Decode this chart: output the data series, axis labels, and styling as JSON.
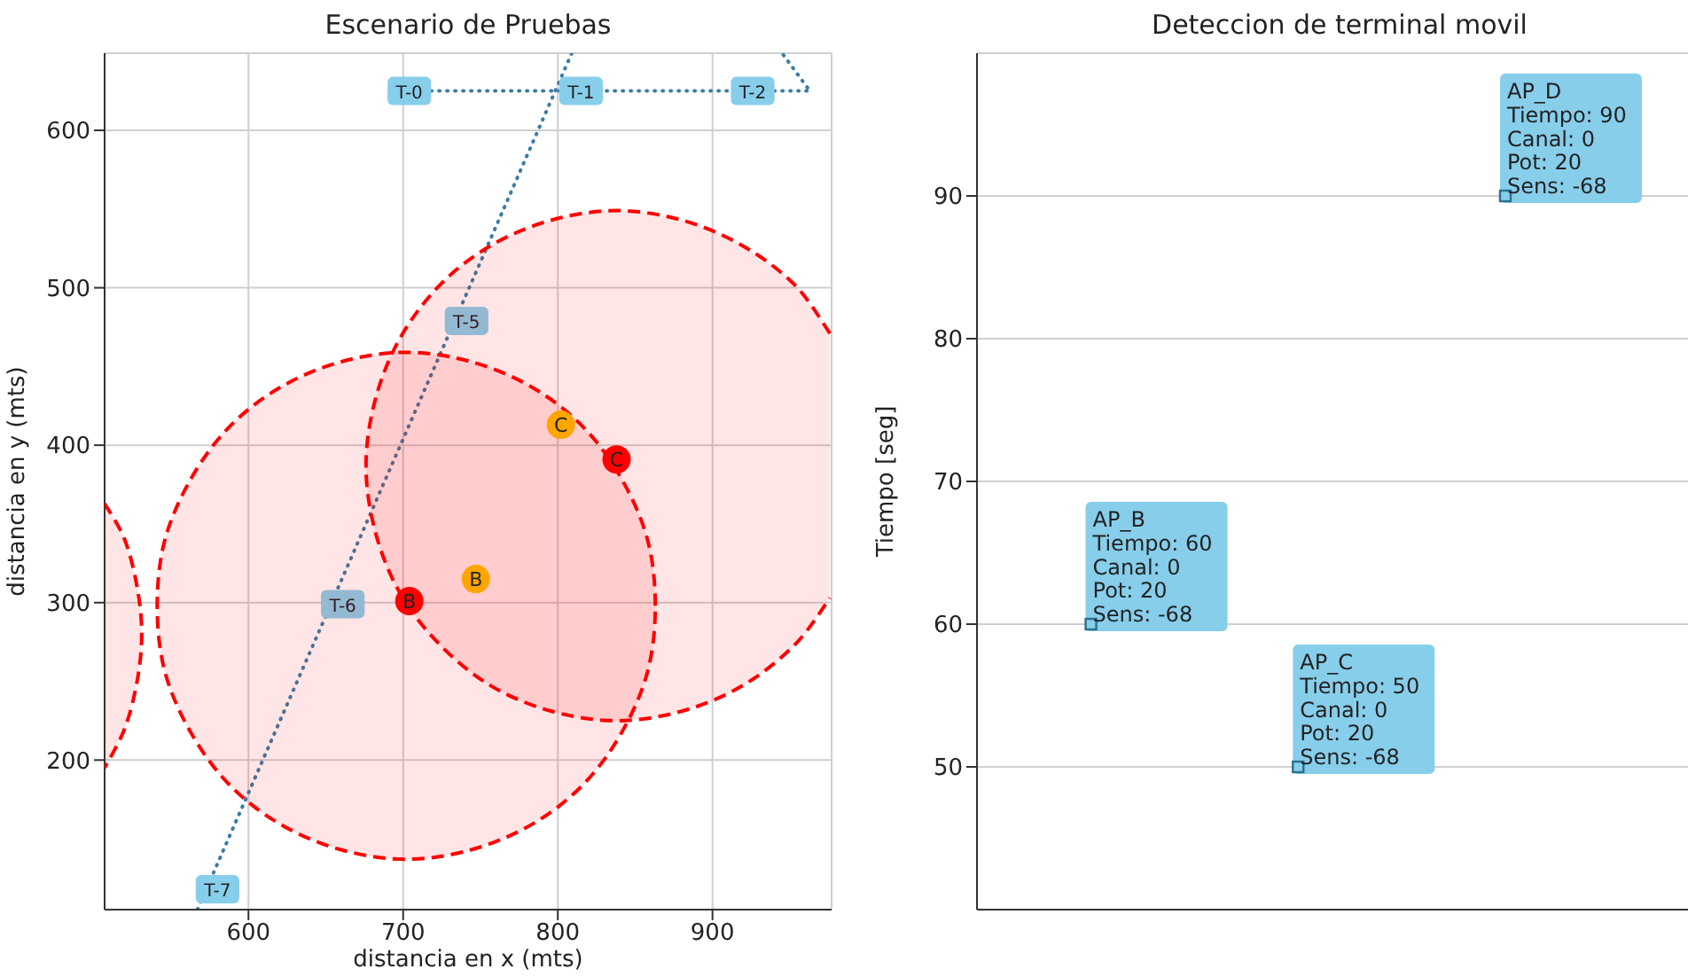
{
  "chart_data": [
    {
      "type": "scatter",
      "title": "Escenario de Pruebas",
      "xlabel": "distancia en x (mts)",
      "ylabel": "distancia en y (mts)",
      "xlim": [
        507,
        977
      ],
      "ylim": [
        105,
        649
      ],
      "xticks": [
        600,
        700,
        800,
        900
      ],
      "yticks": [
        200,
        300,
        400,
        500,
        600
      ],
      "grid": true,
      "series": [
        {
          "type": "area",
          "color": "#ff0000",
          "line_style": "dashed",
          "x": [
            863,
            858,
            841,
            816,
            783,
            744,
            702,
            660,
            621,
            588,
            563,
            546,
            541,
            546,
            563,
            588,
            621,
            660,
            702,
            744,
            783,
            816,
            841,
            858,
            863
          ],
          "values": [
            298,
            340,
            379,
            412,
            437,
            453,
            459,
            453,
            437,
            412,
            379,
            340,
            298,
            256,
            217,
            184,
            159,
            143,
            137,
            143,
            159,
            184,
            217,
            256,
            298
          ]
        },
        {
          "type": "area",
          "color": "#ff0000",
          "line_style": "dashed",
          "x": [
            976,
            953,
            919,
            880,
            838,
            796,
            757,
            724,
            698,
            682,
            676,
            682,
            698,
            724,
            757,
            796,
            838,
            880,
            919,
            953,
            976
          ],
          "values": [
            471,
            502,
            527,
            543,
            549,
            543,
            527,
            502,
            468,
            429,
            387,
            345,
            306,
            273,
            247,
            231,
            225,
            231,
            247,
            273,
            303
          ]
        },
        {
          "type": "area",
          "color": "#ff0000",
          "line_style": "dashed",
          "x": [
            507,
            520,
            528,
            531,
            528,
            520,
            507
          ],
          "values": [
            363,
            340,
            310,
            280,
            250,
            220,
            195
          ]
        },
        {
          "type": "line",
          "color": "#3a7ca5",
          "line_style": "dotted",
          "marker": "none",
          "x": [
            718,
            963,
            945
          ],
          "values": [
            625,
            625,
            649
          ]
        },
        {
          "type": "line",
          "color": "#3a7ca5",
          "line_style": "dotted",
          "marker": "none",
          "x": [
            809,
            567
          ],
          "values": [
            649,
            105
          ]
        },
        {
          "color": "#ff0000",
          "marker": "circle",
          "x": [
            704,
            838
          ],
          "values": [
            301,
            391
          ],
          "value_labels": [
            "B",
            "C"
          ]
        },
        {
          "color": "#ffa500",
          "marker": "circle",
          "x": [
            747,
            802
          ],
          "values": [
            315,
            413
          ],
          "value_labels": [
            "B",
            "C"
          ]
        }
      ],
      "annotations": [
        {
          "text": "T-0",
          "x": 704,
          "y": 625
        },
        {
          "text": "T-1",
          "x": 815,
          "y": 625
        },
        {
          "text": "T-2",
          "x": 926,
          "y": 625
        },
        {
          "text": "T-5",
          "x": 741,
          "y": 479
        },
        {
          "text": "T-6",
          "x": 661,
          "y": 299
        },
        {
          "text": "T-7",
          "x": 580,
          "y": 118
        }
      ]
    },
    {
      "type": "scatter",
      "title": "Deteccion de terminal movil",
      "ylabel": "Tiempo [seg]",
      "categories": [
        null,
        null,
        null
      ],
      "ylim": [
        40,
        100
      ],
      "yticks": [
        50,
        60,
        70,
        80,
        90
      ],
      "grid": "y",
      "tick_labels": "y",
      "series": [
        {
          "color": "#87ceeb",
          "marker": "square",
          "values": [
            60,
            50,
            90
          ],
          "value_labels": [
            "AP_B\nTiempo: 60\nCanal: 0\nPot: 20\nSens: -68",
            "AP_C\nTiempo: 50\nCanal: 0\nPot: 20\nSens: -68",
            "AP_D\nTiempo: 90\nCanal: 0\nPot: 20\nSens: -68"
          ]
        }
      ]
    }
  ]
}
